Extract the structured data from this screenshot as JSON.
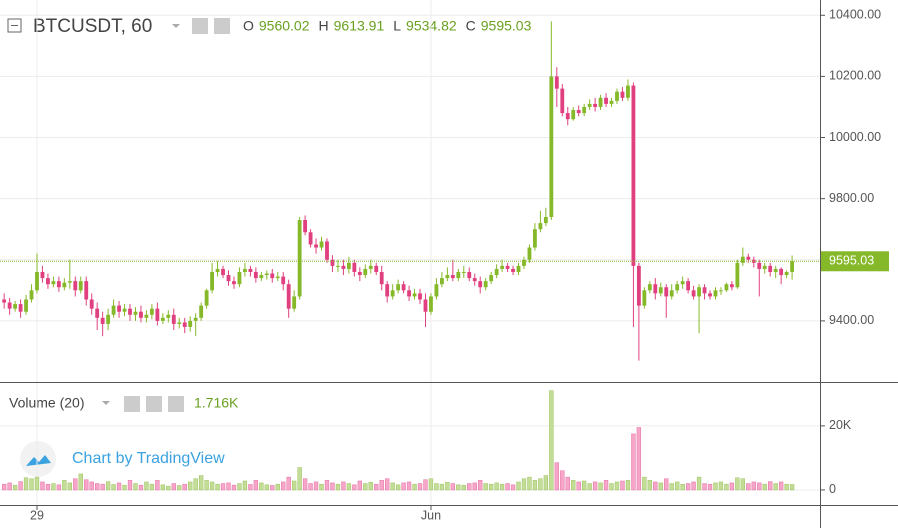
{
  "chart_data": {
    "type": "candlestick",
    "symbol": "BTCUSDT, 60",
    "ohlc_labels": [
      "O",
      "H",
      "L",
      "C"
    ],
    "x": [
      -6,
      -5,
      -4,
      -3,
      -2,
      -1,
      0,
      1,
      2,
      3,
      4,
      5,
      6,
      7,
      8,
      9,
      10,
      11,
      12,
      13,
      14,
      15,
      16,
      17,
      18,
      19,
      20,
      21,
      22,
      23,
      24,
      25,
      26,
      27,
      28,
      29,
      30,
      31,
      32,
      33,
      34,
      35,
      36,
      37,
      38,
      39,
      40,
      41,
      42,
      43,
      44,
      45,
      46,
      47,
      48,
      49,
      50,
      51,
      52,
      53,
      54,
      55,
      56,
      57,
      58,
      59,
      60,
      61,
      62,
      63,
      64,
      65,
      66,
      67,
      68,
      69,
      70,
      71,
      72,
      73,
      74,
      75,
      76,
      77,
      78,
      79,
      80,
      81,
      82,
      83,
      84,
      85,
      86,
      87,
      88,
      89,
      90,
      91,
      92,
      93,
      94,
      95,
      96,
      97,
      98,
      99,
      100,
      101,
      102,
      103,
      104,
      105,
      106,
      107,
      108,
      109,
      110,
      111,
      112,
      113,
      114,
      115,
      116,
      117,
      118,
      119,
      120,
      121,
      122,
      123,
      124,
      125,
      126,
      127,
      128,
      129,
      130,
      131,
      132,
      133,
      134,
      135,
      136,
      137,
      138
    ],
    "open": [
      9470,
      9460,
      9440,
      9455,
      9430,
      9470,
      9500,
      9560,
      9540,
      9520,
      9530,
      9510,
      9525,
      9530,
      9500,
      9530,
      9470,
      9440,
      9410,
      9390,
      9420,
      9450,
      9430,
      9440,
      9420,
      9430,
      9410,
      9420,
      9440,
      9400,
      9410,
      9420,
      9390,
      9395,
      9380,
      9400,
      9410,
      9450,
      9500,
      9560,
      9570,
      9550,
      9530,
      9520,
      9560,
      9570,
      9560,
      9540,
      9550,
      9555,
      9540,
      9545,
      9520,
      9440,
      9480,
      9730,
      9690,
      9650,
      9640,
      9660,
      9600,
      9580,
      9580,
      9570,
      9590,
      9560,
      9550,
      9570,
      9580,
      9560,
      9520,
      9480,
      9500,
      9520,
      9500,
      9480,
      9490,
      9470,
      9430,
      9480,
      9520,
      9540,
      9550,
      9540,
      9560,
      9560,
      9540,
      9530,
      9510,
      9530,
      9550,
      9570,
      9580,
      9570,
      9560,
      9580,
      9600,
      9640,
      9700,
      9720,
      9740,
      10200,
      10160,
      10080,
      10060,
      10090,
      10080,
      10100,
      10110,
      10100,
      10130,
      10110,
      10120,
      10150,
      10130,
      10170,
      9580,
      9450,
      9500,
      9520,
      9490,
      9510,
      9480,
      9500,
      9520,
      9530,
      9500,
      9480,
      9510,
      9490,
      9480,
      9500,
      9500,
      9520,
      9510,
      9590,
      9610,
      9600,
      9590,
      9570,
      9580,
      9560,
      9570,
      9550,
      9560.02
    ],
    "high": [
      9490,
      9475,
      9465,
      9470,
      9485,
      9520,
      9620,
      9580,
      9555,
      9545,
      9545,
      9540,
      9600,
      9545,
      9545,
      9545,
      9490,
      9460,
      9430,
      9440,
      9470,
      9465,
      9455,
      9455,
      9445,
      9450,
      9435,
      9455,
      9460,
      9425,
      9435,
      9440,
      9410,
      9410,
      9415,
      9425,
      9460,
      9505,
      9590,
      9595,
      9580,
      9565,
      9545,
      9575,
      9590,
      9580,
      9575,
      9560,
      9565,
      9570,
      9560,
      9560,
      9535,
      9500,
      9740,
      9745,
      9700,
      9670,
      9675,
      9670,
      9615,
      9600,
      9600,
      9610,
      9600,
      9575,
      9585,
      9600,
      9590,
      9580,
      9530,
      9520,
      9535,
      9530,
      9515,
      9505,
      9505,
      9490,
      9490,
      9540,
      9560,
      9575,
      9600,
      9570,
      9580,
      9575,
      9555,
      9545,
      9540,
      9560,
      9585,
      9600,
      9590,
      9580,
      9590,
      9610,
      9650,
      9720,
      9760,
      9770,
      10380,
      10230,
      10175,
      10100,
      10100,
      10105,
      10110,
      10125,
      10130,
      10140,
      10145,
      10130,
      10160,
      10165,
      10190,
      10180,
      9590,
      9510,
      9530,
      9540,
      9525,
      9520,
      9520,
      9530,
      9545,
      9540,
      9515,
      9520,
      9520,
      9500,
      9510,
      9510,
      9525,
      9530,
      9600,
      9640,
      9620,
      9610,
      9600,
      9590,
      9590,
      9580,
      9575,
      9565,
      9613.91
    ],
    "low": [
      9440,
      9420,
      9430,
      9410,
      9420,
      9460,
      9490,
      9525,
      9505,
      9510,
      9495,
      9500,
      9505,
      9480,
      9490,
      9450,
      9420,
      9370,
      9350,
      9370,
      9410,
      9410,
      9415,
      9400,
      9400,
      9395,
      9395,
      9405,
      9385,
      9390,
      9395,
      9370,
      9375,
      9360,
      9365,
      9350,
      9400,
      9440,
      9490,
      9545,
      9540,
      9515,
      9505,
      9510,
      9545,
      9545,
      9525,
      9530,
      9535,
      9525,
      9530,
      9500,
      9410,
      9430,
      9470,
      9680,
      9640,
      9620,
      9630,
      9590,
      9560,
      9560,
      9550,
      9555,
      9545,
      9530,
      9540,
      9555,
      9550,
      9500,
      9460,
      9470,
      9490,
      9490,
      9465,
      9470,
      9455,
      9380,
      9420,
      9470,
      9510,
      9530,
      9530,
      9530,
      9540,
      9530,
      9515,
      9490,
      9500,
      9520,
      9540,
      9560,
      9560,
      9550,
      9550,
      9570,
      9590,
      9630,
      9690,
      9710,
      9730,
      10100,
      10070,
      10040,
      10055,
      10070,
      10070,
      10090,
      10085,
      10090,
      10100,
      10100,
      10110,
      10120,
      10120,
      9380,
      9270,
      9440,
      9490,
      9470,
      9480,
      9410,
      9470,
      9490,
      9505,
      9490,
      9470,
      9360,
      9470,
      9470,
      9470,
      9485,
      9495,
      9500,
      9505,
      9580,
      9590,
      9575,
      9480,
      9555,
      9545,
      9540,
      9520,
      9540,
      9534.82
    ],
    "close": [
      9460,
      9440,
      9455,
      9430,
      9470,
      9500,
      9560,
      9540,
      9520,
      9530,
      9510,
      9525,
      9530,
      9500,
      9530,
      9470,
      9440,
      9410,
      9390,
      9420,
      9450,
      9430,
      9440,
      9420,
      9430,
      9410,
      9420,
      9440,
      9400,
      9410,
      9420,
      9390,
      9395,
      9380,
      9400,
      9410,
      9450,
      9500,
      9560,
      9570,
      9550,
      9530,
      9520,
      9560,
      9570,
      9560,
      9540,
      9550,
      9555,
      9540,
      9545,
      9520,
      9440,
      9480,
      9730,
      9690,
      9650,
      9640,
      9660,
      9600,
      9580,
      9580,
      9570,
      9590,
      9560,
      9550,
      9570,
      9580,
      9560,
      9520,
      9480,
      9500,
      9520,
      9500,
      9480,
      9490,
      9470,
      9430,
      9480,
      9520,
      9540,
      9550,
      9540,
      9560,
      9560,
      9540,
      9530,
      9510,
      9530,
      9550,
      9570,
      9580,
      9570,
      9560,
      9580,
      9600,
      9640,
      9700,
      9720,
      9740,
      10200,
      10160,
      10080,
      10060,
      10090,
      10080,
      10100,
      10110,
      10100,
      10130,
      10110,
      10120,
      10150,
      10130,
      10170,
      9580,
      9450,
      9500,
      9520,
      9490,
      9510,
      9480,
      9500,
      9520,
      9530,
      9500,
      9480,
      9510,
      9490,
      9480,
      9500,
      9500,
      9520,
      9510,
      9590,
      9610,
      9600,
      9590,
      9570,
      9580,
      9560,
      9570,
      9550,
      9560.02,
      9595.03
    ],
    "up_color": "#86b92a",
    "down_color": "#e0407f",
    "xlim": [
      -6.76,
      143.1
    ],
    "xticks": [
      {
        "value": 0,
        "label": "29"
      },
      {
        "value": 72,
        "label": "Jun"
      }
    ],
    "ylim": [
      9200,
      10450
    ],
    "yticks": [
      {
        "value": 9400,
        "label": "9400.00"
      },
      {
        "value": 9600,
        "label": "9600.00"
      },
      {
        "value": 9800,
        "label": "9800.00"
      },
      {
        "value": 10000,
        "label": "10000.00"
      },
      {
        "value": 10200,
        "label": "10200.00"
      },
      {
        "value": 10400,
        "label": "10400.00"
      }
    ],
    "grid": true,
    "volume": {
      "name": "Volume (20)",
      "last_value_label": "1.716K",
      "up_color": "#c3dd98",
      "down_color": "#f6a6c9",
      "values": [
        1800,
        2200,
        1500,
        2600,
        3800,
        3500,
        4000,
        2500,
        1800,
        2000,
        1600,
        3000,
        2200,
        3500,
        5000,
        3200,
        2500,
        2000,
        1800,
        2600,
        1700,
        2200,
        1500,
        3000,
        2000,
        1500,
        2500,
        1800,
        3000,
        1600,
        1200,
        2000,
        1400,
        1800,
        2500,
        3500,
        4500,
        3000,
        2500,
        1800,
        2000,
        2200,
        1500,
        2000,
        2800,
        1700,
        3000,
        2200,
        1600,
        1400,
        1800,
        2500,
        4000,
        2800,
        7000,
        3500,
        2000,
        2500,
        1800,
        3000,
        2200,
        1800,
        2500,
        2000,
        1600,
        2800,
        2000,
        2400,
        1800,
        3000,
        3500,
        2200,
        1600,
        2200,
        2500,
        1800,
        2000,
        3200,
        3500,
        2000,
        1800,
        2400,
        2000,
        1600,
        1500,
        2000,
        2200,
        3000,
        2000,
        1800,
        2200,
        1800,
        2000,
        1600,
        2500,
        3500,
        4000,
        3000,
        3500,
        4500,
        31000,
        8500,
        6000,
        4000,
        3000,
        2500,
        2800,
        2000,
        2500,
        2200,
        3000,
        2000,
        2500,
        2800,
        3000,
        17500,
        19500,
        4000,
        3000,
        2500,
        2200,
        3500,
        2000,
        2500,
        1800,
        2000,
        2500,
        4000,
        2000,
        1800,
        2200,
        2500,
        1800,
        2200,
        3800,
        3500,
        2000,
        2500,
        2200,
        1800,
        2600,
        2000,
        2500,
        1800,
        1716
      ],
      "ylim": [
        -4700,
        33400
      ],
      "yticks": [
        0,
        {
          "value": 20000,
          "label": "20K"
        }
      ]
    },
    "watermark": "Chart by TradingView"
  }
}
